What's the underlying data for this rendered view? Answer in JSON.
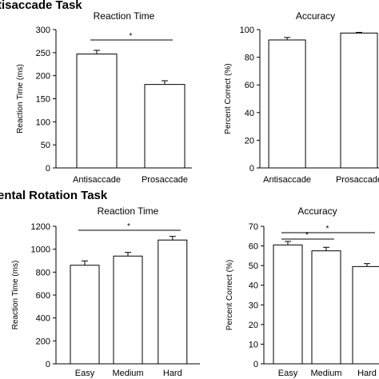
{
  "sections": {
    "top_title": "tisaccade Task",
    "bottom_title": "ental Rotation Task"
  },
  "chart_data": [
    {
      "type": "bar",
      "title": "Reaction Time",
      "xlabel": "",
      "ylabel": "Reaction Time (ms)",
      "categories": [
        "Antisaccade",
        "Prosaccade"
      ],
      "values": [
        247,
        181
      ],
      "errors": [
        8,
        8
      ],
      "ylim": [
        0,
        300
      ],
      "yticks": [
        0,
        50,
        100,
        150,
        200,
        250,
        300
      ],
      "significance": [
        {
          "from": 0,
          "to": 1,
          "label": "*"
        }
      ]
    },
    {
      "type": "bar",
      "title": "Accuracy",
      "xlabel": "",
      "ylabel": "Percent Correct (%)",
      "categories": [
        "Antisaccade",
        "Prosaccade"
      ],
      "values": [
        92.5,
        97.5
      ],
      "errors": [
        1.8,
        0.5
      ],
      "ylim": [
        0,
        100
      ],
      "yticks": [
        0,
        20,
        40,
        60,
        80,
        100
      ],
      "significance": []
    },
    {
      "type": "bar",
      "title": "Reaction Time",
      "xlabel": "",
      "ylabel": "Reaction Time (ms)",
      "categories": [
        "Easy",
        "Medium",
        "Hard"
      ],
      "values": [
        860,
        940,
        1080
      ],
      "errors": [
        38,
        32,
        32
      ],
      "ylim": [
        0,
        1200
      ],
      "yticks": [
        0,
        200,
        400,
        600,
        800,
        1000,
        1200
      ],
      "significance": [
        {
          "from": 0,
          "to": 2,
          "label": "*"
        }
      ]
    },
    {
      "type": "bar",
      "title": "Accuracy",
      "xlabel": "",
      "ylabel": "Percent Correct (%)",
      "categories": [
        "Easy",
        "Medium",
        "Hard"
      ],
      "values": [
        60.5,
        57.5,
        49.5
      ],
      "errors": [
        1.8,
        1.8,
        1.5
      ],
      "ylim": [
        0,
        70
      ],
      "yticks": [
        0,
        10,
        20,
        30,
        40,
        50,
        60,
        70
      ],
      "significance": [
        {
          "from": 0,
          "to": 2,
          "label": "*"
        },
        {
          "from": 0,
          "to": 1,
          "label": "*"
        }
      ]
    }
  ]
}
